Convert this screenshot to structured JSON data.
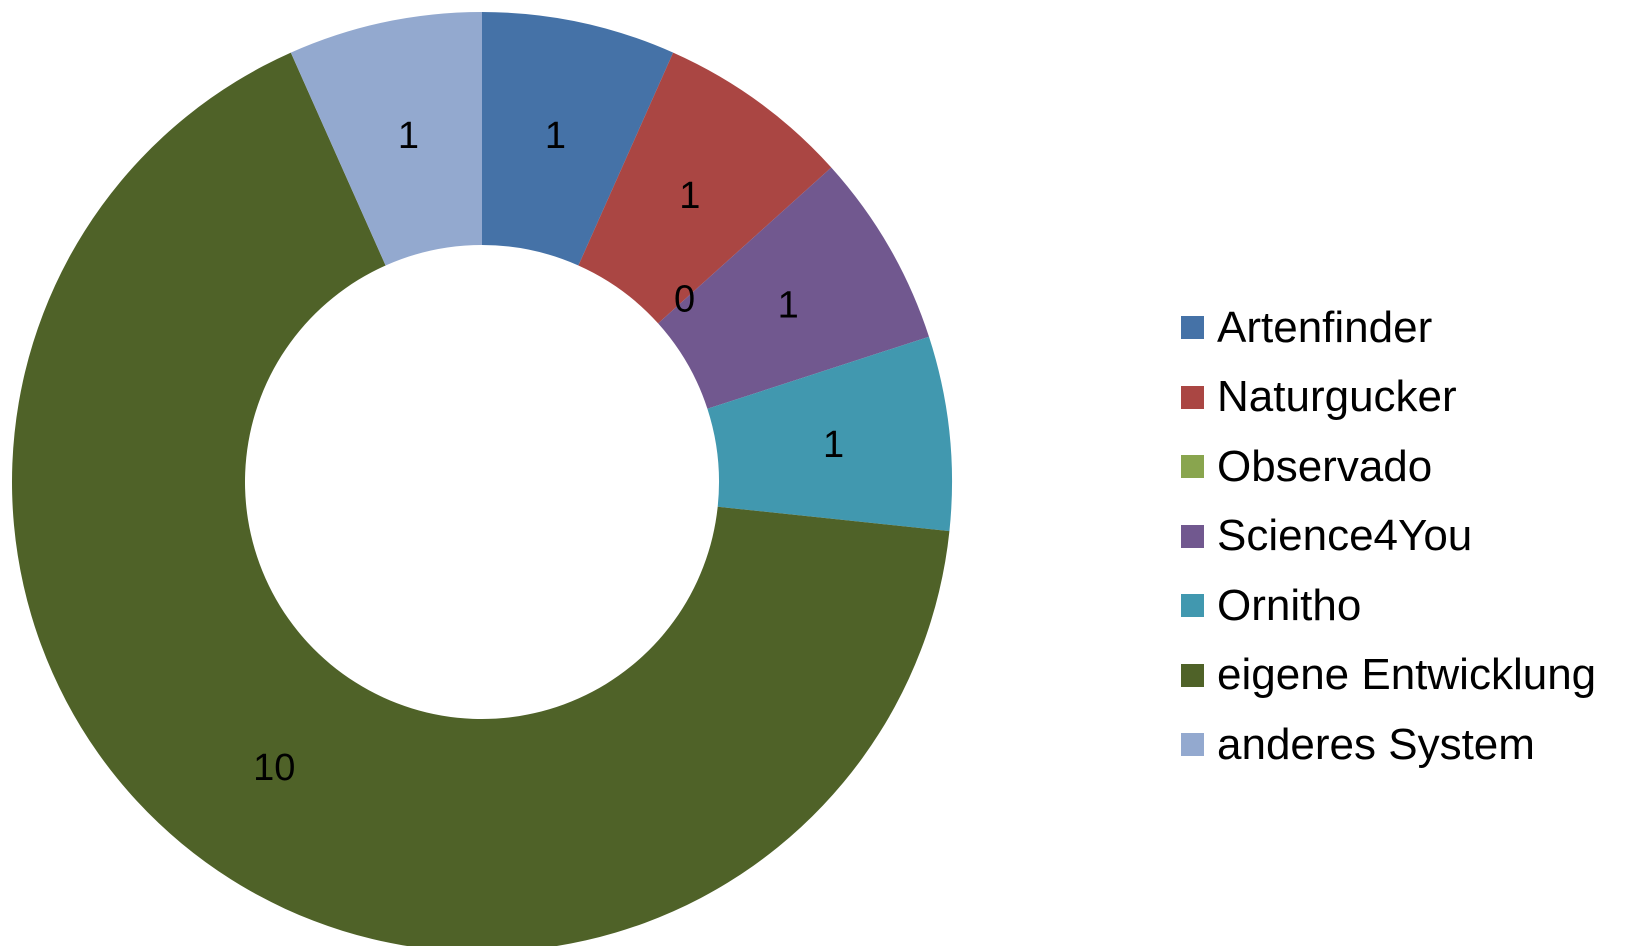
{
  "chart_data": {
    "type": "pie",
    "variant": "donut",
    "title": "",
    "categories": [
      "Artenfinder",
      "Naturgucker",
      "Observado",
      "Science4You",
      "Ornitho",
      "eigene Entwicklung",
      "anderes System"
    ],
    "values": [
      1,
      1,
      0,
      1,
      1,
      10,
      1
    ],
    "data_labels": [
      "1",
      "1",
      "0",
      "1",
      "1",
      "10",
      "1"
    ],
    "colors": [
      "#4572A7",
      "#AA4643",
      "#89A54E",
      "#71588F",
      "#4198AF",
      "#4F6228",
      "#93A9CF"
    ],
    "legend_position": "right"
  }
}
